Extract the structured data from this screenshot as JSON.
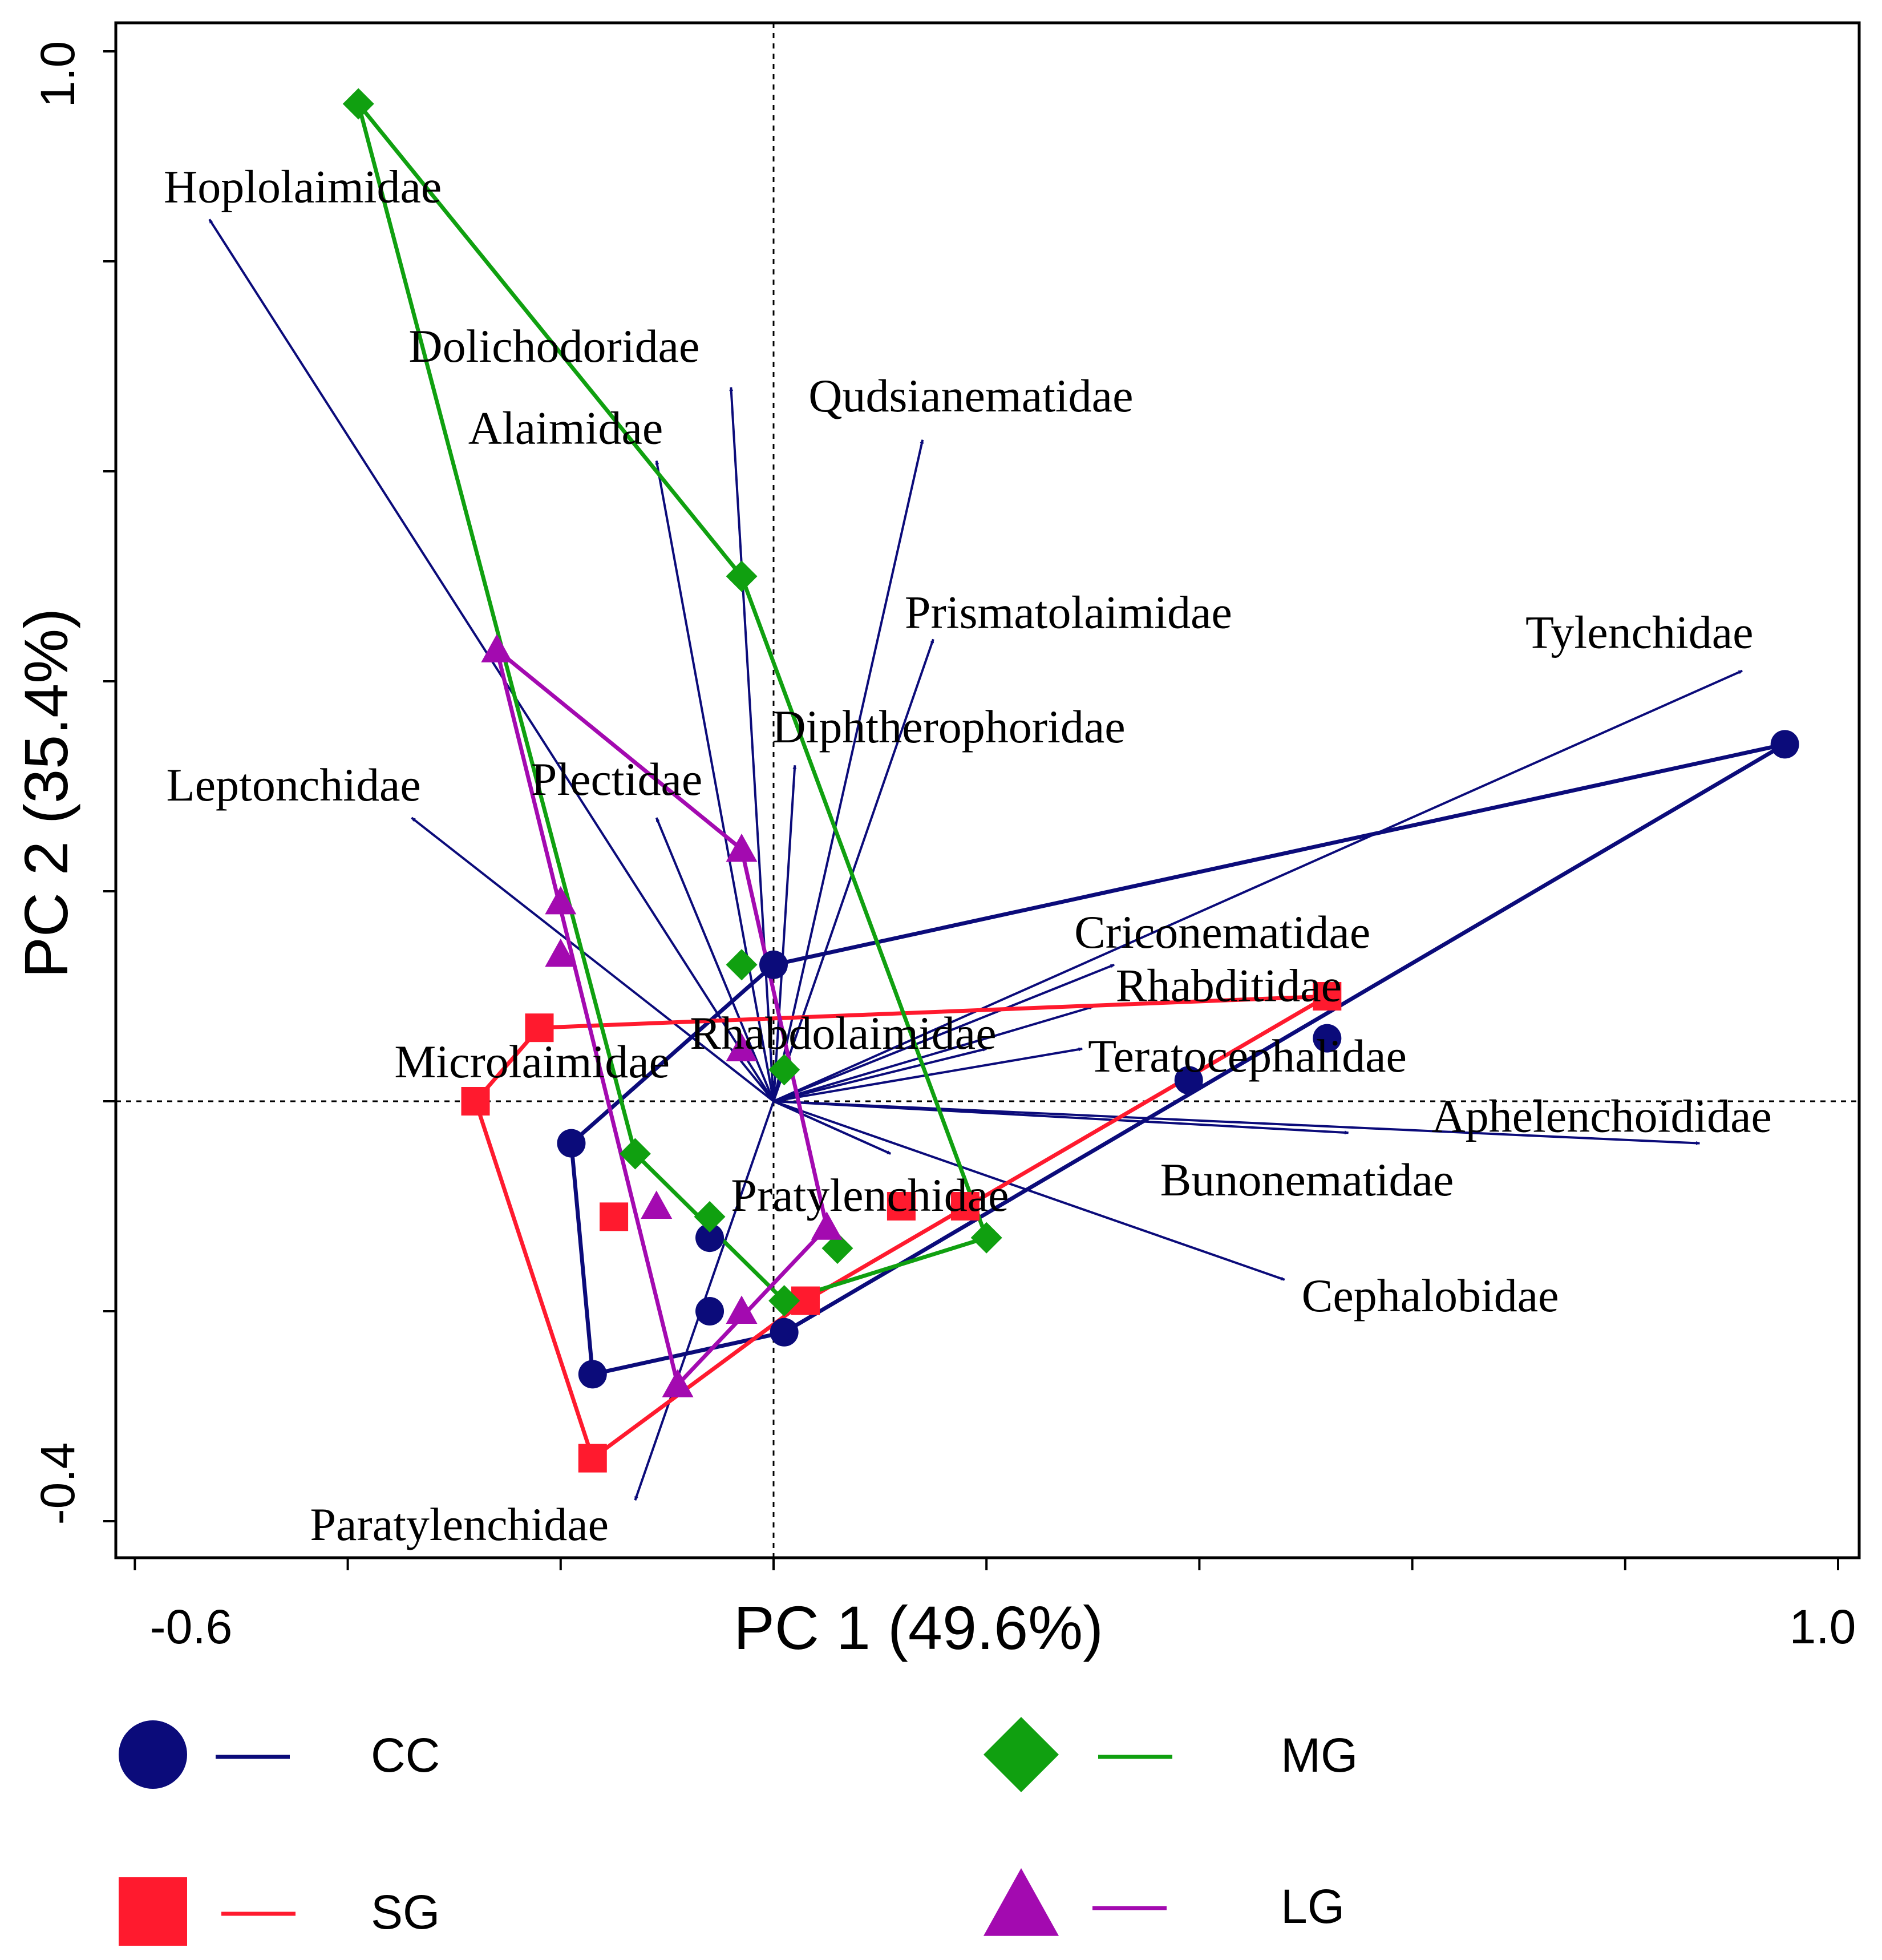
{
  "chart_data": {
    "type": "scatter",
    "subtype": "pca-biplot",
    "xlabel": "PC 1 (49.6%)",
    "ylabel": "PC 2 (35.4%)",
    "xlim": [
      -0.6,
      1.0
    ],
    "ylim": [
      -0.4,
      1.0
    ],
    "x_tick_labels": [
      "-0.6",
      "1.0"
    ],
    "y_tick_labels": [
      "1.0",
      "-0.4"
    ],
    "reference_lines": "dashed at x=0 and y=0",
    "grid": false,
    "loadings": [
      {
        "name": "Hoplolaimidae",
        "x": -0.53,
        "y": 0.84
      },
      {
        "name": "Dolichodoridae",
        "x": -0.04,
        "y": 0.68
      },
      {
        "name": "Alaimidae",
        "x": -0.11,
        "y": 0.61
      },
      {
        "name": "Qudsianematidae",
        "x": 0.14,
        "y": 0.63
      },
      {
        "name": "Prismatolaimidae",
        "x": 0.15,
        "y": 0.44
      },
      {
        "name": "Diphtherophoridae",
        "x": 0.02,
        "y": 0.32
      },
      {
        "name": "Plectidae",
        "x": -0.11,
        "y": 0.27
      },
      {
        "name": "Leptonchidae",
        "x": -0.34,
        "y": 0.27
      },
      {
        "name": "Tylenchidae",
        "x": 0.91,
        "y": 0.41
      },
      {
        "name": "Criconematidae",
        "x": 0.32,
        "y": 0.13
      },
      {
        "name": "Rhabditidae",
        "x": 0.3,
        "y": 0.09
      },
      {
        "name": "Rhabdolaimidae",
        "x": 0.2,
        "y": 0.05
      },
      {
        "name": "Teratocephalidae",
        "x": 0.29,
        "y": 0.05
      },
      {
        "name": "Microlaimidae",
        "x": -0.04,
        "y": 0.05
      },
      {
        "name": "Aphelenchoididae",
        "x": 0.87,
        "y": -0.04
      },
      {
        "name": "Bunonematidae",
        "x": 0.54,
        "y": -0.03
      },
      {
        "name": "Pratylenchidae",
        "x": 0.11,
        "y": -0.05
      },
      {
        "name": "Cephalobidae",
        "x": 0.48,
        "y": -0.17
      },
      {
        "name": "Paratylenchidae",
        "x": -0.13,
        "y": -0.38
      }
    ],
    "series": [
      {
        "name": "CC",
        "marker": "circle",
        "color": "#0b0b7a",
        "points": [
          [
            -0.19,
            -0.04
          ],
          [
            -0.06,
            -0.13
          ],
          [
            -0.06,
            -0.2
          ],
          [
            0.01,
            -0.22
          ],
          [
            -0.17,
            -0.26
          ],
          [
            0.0,
            0.13
          ],
          [
            0.39,
            0.02
          ],
          [
            0.52,
            0.06
          ],
          [
            0.95,
            0.34
          ]
        ],
        "hull": [
          [
            0.0,
            0.13
          ],
          [
            0.95,
            0.34
          ],
          [
            0.01,
            -0.22
          ],
          [
            -0.17,
            -0.26
          ],
          [
            -0.19,
            -0.04
          ],
          [
            0.0,
            0.13
          ]
        ]
      },
      {
        "name": "SG",
        "marker": "square",
        "color": "#ff1a2e",
        "points": [
          [
            -0.22,
            0.07
          ],
          [
            -0.28,
            0.0
          ],
          [
            -0.15,
            -0.11
          ],
          [
            -0.17,
            -0.34
          ],
          [
            0.03,
            -0.19
          ],
          [
            0.12,
            -0.1
          ],
          [
            0.18,
            -0.1
          ],
          [
            0.52,
            0.1
          ]
        ],
        "hull": [
          [
            -0.22,
            0.07
          ],
          [
            0.52,
            0.1
          ],
          [
            0.03,
            -0.19
          ],
          [
            -0.17,
            -0.34
          ],
          [
            -0.28,
            0.0
          ],
          [
            -0.22,
            0.07
          ]
        ]
      },
      {
        "name": "MG",
        "marker": "diamond",
        "color": "#10a010",
        "points": [
          [
            -0.39,
            0.95
          ],
          [
            -0.03,
            0.5
          ],
          [
            -0.03,
            0.13
          ],
          [
            0.01,
            0.03
          ],
          [
            -0.13,
            -0.05
          ],
          [
            -0.06,
            -0.11
          ],
          [
            0.06,
            -0.14
          ],
          [
            0.01,
            -0.19
          ],
          [
            0.2,
            -0.13
          ]
        ],
        "hull": [
          [
            -0.39,
            0.95
          ],
          [
            -0.03,
            0.5
          ],
          [
            0.2,
            -0.13
          ],
          [
            0.01,
            -0.19
          ],
          [
            -0.13,
            -0.05
          ],
          [
            -0.39,
            0.95
          ]
        ]
      },
      {
        "name": "LG",
        "marker": "triangle",
        "color": "#a30ab0",
        "points": [
          [
            -0.26,
            0.43
          ],
          [
            -0.03,
            0.24
          ],
          [
            -0.2,
            0.19
          ],
          [
            -0.2,
            0.14
          ],
          [
            -0.03,
            0.05
          ],
          [
            -0.11,
            -0.1
          ],
          [
            0.05,
            -0.12
          ],
          [
            -0.03,
            -0.2
          ],
          [
            -0.09,
            -0.27
          ]
        ],
        "hull": [
          [
            -0.26,
            0.43
          ],
          [
            -0.03,
            0.24
          ],
          [
            0.05,
            -0.12
          ],
          [
            -0.09,
            -0.27
          ],
          [
            -0.26,
            0.43
          ]
        ]
      }
    ],
    "legend": {
      "placement": "bottom",
      "items": [
        {
          "label": "CC",
          "marker": "circle",
          "color": "#0b0b7a"
        },
        {
          "label": "MG",
          "marker": "diamond",
          "color": "#10a010"
        },
        {
          "label": "SG",
          "marker": "square",
          "color": "#ff1a2e"
        },
        {
          "label": "LG",
          "marker": "triangle",
          "color": "#a30ab0"
        }
      ]
    },
    "vector_color": "#0b0b7a"
  }
}
